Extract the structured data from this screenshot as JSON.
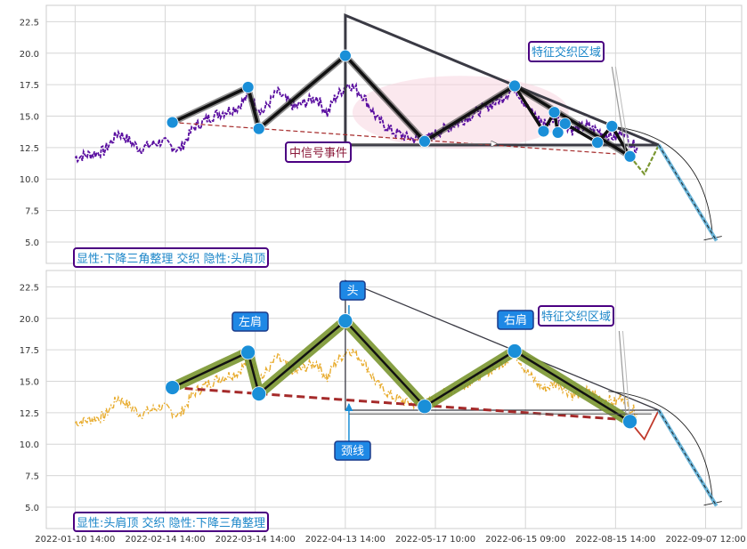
{
  "chart_data": {
    "type": "line",
    "x_tick_labels": [
      "2022-01-10 14:00",
      "2022-02-14 14:00",
      "2022-03-14 14:00",
      "2022-04-13 14:00",
      "2022-05-17 10:00",
      "2022-06-15 09:00",
      "2022-08-15 14:00",
      "2022-09-07 12:00"
    ],
    "x_tick_index": [
      0,
      25,
      50,
      75,
      100,
      125,
      150,
      175
    ],
    "y_ticks": [
      5.0,
      7.5,
      10.0,
      12.5,
      15.0,
      17.5,
      20.0,
      22.5
    ],
    "y_tick_labels": [
      "5.0",
      "7.5",
      "10.0",
      "12.5",
      "15.0",
      "17.5",
      "20.0",
      "22.5"
    ],
    "ylim": [
      3.3,
      23.8
    ],
    "xlim": [
      -8,
      185
    ],
    "grid": true,
    "price_pivots": [
      [
        0,
        11.7
      ],
      [
        8,
        12.2
      ],
      [
        12,
        13.7
      ],
      [
        18,
        12.4
      ],
      [
        24,
        13.0
      ],
      [
        29,
        12.3
      ],
      [
        33,
        14.1
      ],
      [
        38,
        15.0
      ],
      [
        45,
        15.7
      ],
      [
        48,
        16.6
      ],
      [
        52,
        15.3
      ],
      [
        56,
        16.9
      ],
      [
        61,
        15.7
      ],
      [
        67,
        16.5
      ],
      [
        70,
        15.2
      ],
      [
        72,
        16.4
      ],
      [
        76,
        17.6
      ],
      [
        80,
        16.6
      ],
      [
        84,
        14.7
      ],
      [
        88,
        13.8
      ],
      [
        92,
        13.3
      ],
      [
        97,
        13.1
      ],
      [
        102,
        13.9
      ],
      [
        107,
        14.6
      ],
      [
        112,
        15.4
      ],
      [
        118,
        16.3
      ],
      [
        122,
        17.3
      ],
      [
        126,
        15.5
      ],
      [
        130,
        14.4
      ],
      [
        134,
        14.9
      ],
      [
        138,
        13.9
      ],
      [
        142,
        14.2
      ],
      [
        146,
        13.7
      ],
      [
        150,
        13.3
      ],
      [
        152,
        13.9
      ],
      [
        154,
        12.9
      ],
      [
        156,
        12.5
      ]
    ],
    "pattern_points": [
      {
        "x": 27,
        "y": 14.5
      },
      {
        "x": 48,
        "y": 17.3
      },
      {
        "x": 51,
        "y": 14.0
      },
      {
        "x": 75,
        "y": 19.8
      },
      {
        "x": 97,
        "y": 13.0
      },
      {
        "x": 122,
        "y": 17.4
      },
      {
        "x": 154,
        "y": 11.8
      }
    ],
    "top_extra_points": [
      {
        "x": 130,
        "y": 13.8
      },
      {
        "x": 133,
        "y": 15.3
      },
      {
        "x": 134,
        "y": 13.7
      },
      {
        "x": 136,
        "y": 14.4
      },
      {
        "x": 145,
        "y": 12.9
      },
      {
        "x": 149,
        "y": 14.2
      }
    ],
    "neckline": {
      "x1": 27,
      "y1": 14.5,
      "x2": 150,
      "y2": 12.0
    },
    "triangle": {
      "apex_x": 75,
      "apex_y": 23.0,
      "right_x": 162,
      "base_y": 12.7
    },
    "zigzag": [
      [
        154,
        11.8
      ],
      [
        158,
        10.4
      ],
      [
        162,
        12.7
      ]
    ],
    "forecast": [
      [
        162,
        12.7
      ],
      [
        178,
        5.1
      ]
    ],
    "arc": {
      "start": [
        148,
        14.2
      ],
      "ctrl": [
        175,
        13.5
      ],
      "end": [
        177,
        5.3
      ]
    },
    "ellipse": {
      "cx": 107,
      "cy": 15.3,
      "rx": 30,
      "ry": 2.9
    },
    "overlap_arrow": {
      "from": [
        149,
        17.8
      ],
      "to": [
        153,
        11.8
      ]
    },
    "top_signal_arrow": {
      "x1": 75,
      "x2": 117,
      "y": 12.8
    },
    "bottom_signal_arrow": {
      "x": 76,
      "y1": 13.2,
      "y2": 12.4,
      "x_end": 160
    },
    "colors": {
      "top_price": "#5a0fa0",
      "bottom_price": "#e8ac2e",
      "point": "#1a8fd8",
      "pattern_line": "#111111",
      "olive": "#7a9630",
      "neckline": "#a52a2a",
      "triangle": "#3a3a44",
      "forecast": "#6ab4d8",
      "zigzag_top": "#7a9630",
      "zigzag_bottom": "#c0392b",
      "annotation_border": "#4b0082",
      "annotation_text": "#1a85c8",
      "callout_fill": "#1e88e5"
    }
  },
  "top_panel": {
    "annotation_main": "显性:下降三角整理 交织 隐性:头肩顶",
    "annotation_event": "中信号事件",
    "annotation_overlap": "特征交织区域"
  },
  "bottom_panel": {
    "annotation_main": "显性:头肩顶 交织 隐性:下降三角整理",
    "annotation_overlap": "特征交织区域",
    "label_left_shoulder": "左肩",
    "label_head": "头",
    "label_right_shoulder": "右肩",
    "label_neckline": "颈线"
  }
}
